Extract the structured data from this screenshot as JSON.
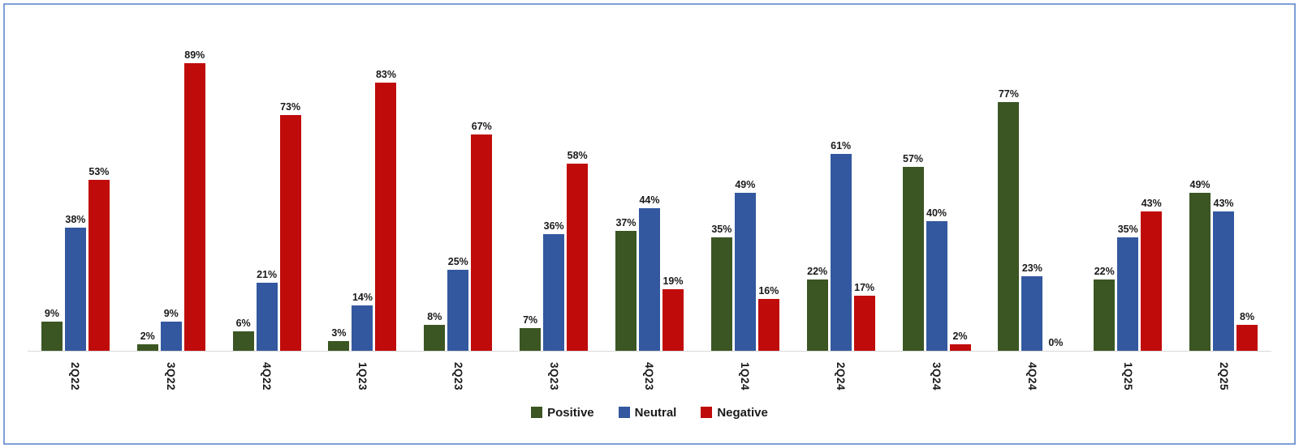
{
  "colors": {
    "frame_border": "#7e9fd6",
    "axis_line": "#d9d9d9",
    "positive": "#3b5623",
    "neutral": "#33589f",
    "negative": "#c00b0b"
  },
  "legend": {
    "positive_label": "Positive",
    "neutral_label": "Neutral",
    "negative_label": "Negative"
  },
  "chart_data": {
    "type": "bar",
    "title": "",
    "xlabel": "",
    "ylabel": "",
    "value_suffix": "%",
    "ylim": [
      0,
      100
    ],
    "grid": false,
    "legend_position": "bottom",
    "categories": [
      "2Q22",
      "3Q22",
      "4Q22",
      "1Q23",
      "2Q23",
      "3Q23",
      "4Q23",
      "1Q24",
      "2Q24",
      "3Q24",
      "4Q24",
      "1Q25",
      "2Q25"
    ],
    "series": [
      {
        "name": "Positive",
        "color": "#3b5623",
        "values": [
          9,
          2,
          6,
          3,
          8,
          7,
          37,
          35,
          22,
          57,
          77,
          22,
          49
        ]
      },
      {
        "name": "Neutral",
        "color": "#33589f",
        "values": [
          38,
          9,
          21,
          14,
          25,
          36,
          44,
          49,
          61,
          40,
          23,
          35,
          43
        ]
      },
      {
        "name": "Negative",
        "color": "#c00b0b",
        "values": [
          53,
          89,
          73,
          83,
          67,
          58,
          19,
          16,
          17,
          2,
          0,
          43,
          8
        ]
      }
    ]
  }
}
